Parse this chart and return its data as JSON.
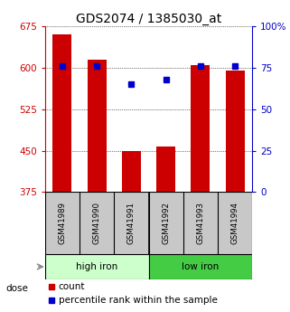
{
  "title": "GDS2074 / 1385030_at",
  "samples": [
    "GSM41989",
    "GSM41990",
    "GSM41991",
    "GSM41992",
    "GSM41993",
    "GSM41994"
  ],
  "counts": [
    660,
    615,
    450,
    458,
    605,
    595
  ],
  "percentiles": [
    76,
    76,
    65,
    68,
    76,
    76
  ],
  "ylim_left": [
    375,
    675
  ],
  "ylim_right": [
    0,
    100
  ],
  "yticks_left": [
    375,
    450,
    525,
    600,
    675
  ],
  "yticks_right": [
    0,
    25,
    50,
    75,
    100
  ],
  "bar_color": "#cc0000",
  "dot_color": "#0000cc",
  "high_iron_color": "#ccffcc",
  "low_iron_color": "#44cc44",
  "sample_box_color": "#c8c8c8",
  "title_fontsize": 10,
  "tick_fontsize": 7.5,
  "legend_fontsize": 7.5
}
